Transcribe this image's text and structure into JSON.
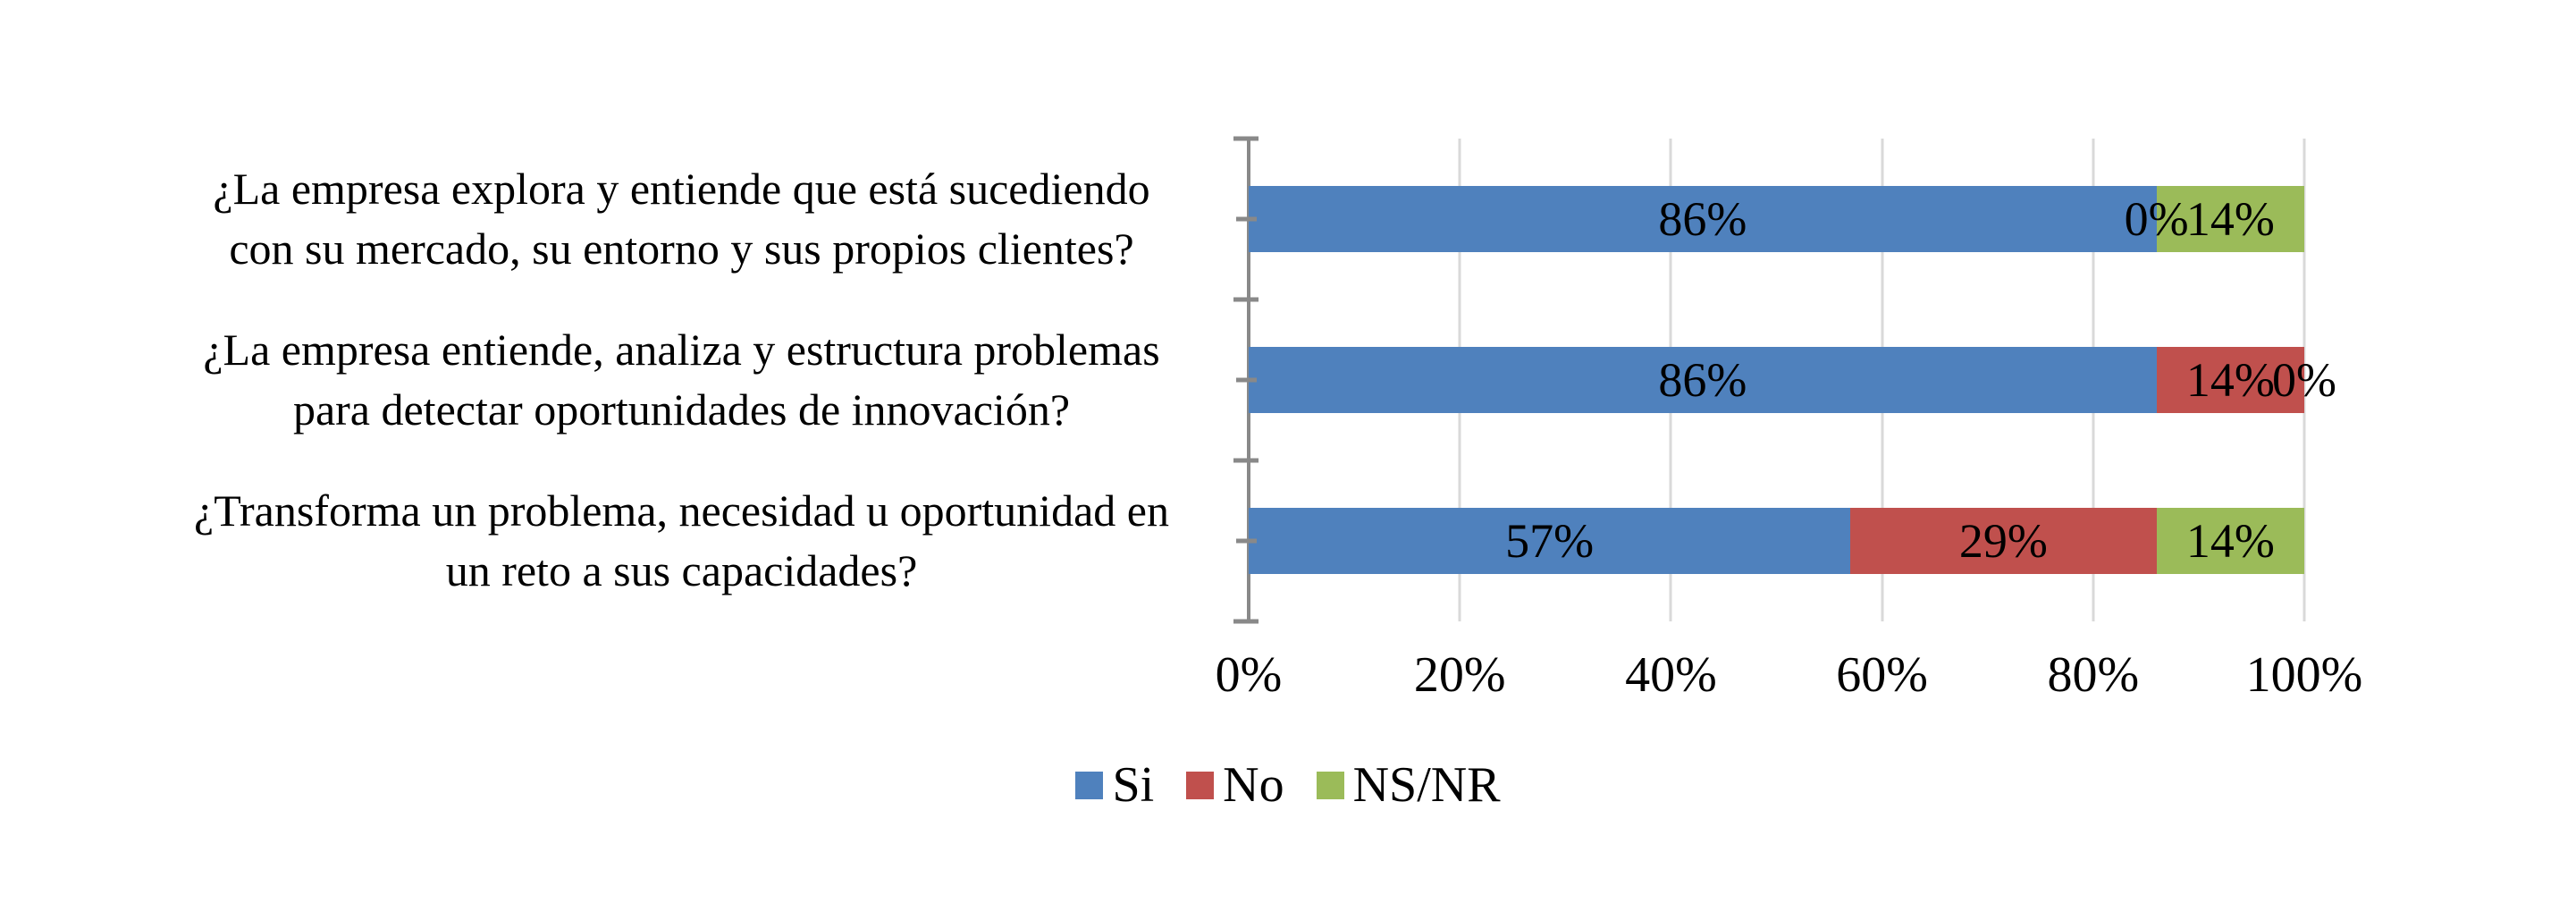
{
  "chart_data": {
    "type": "bar",
    "orientation": "horizontal",
    "stacked": true,
    "unit": "%",
    "title": "",
    "categories": [
      "¿La empresa explora y entiende que está sucediendo\ncon su mercado, su entorno y sus propios clientes?",
      "¿La empresa entiende, analiza y estructura problemas\npara detectar oportunidades de innovación?",
      "¿Transforma un problema, necesidad u oportunidad en\nun reto a sus capacidades?"
    ],
    "series": [
      {
        "name": "Si",
        "color": "#4F81BD",
        "values": [
          86,
          86,
          57
        ]
      },
      {
        "name": "No",
        "color": "#C0504D",
        "values": [
          0,
          14,
          29
        ]
      },
      {
        "name": "NS/NR",
        "color": "#9BBB59",
        "values": [
          14,
          0,
          14
        ]
      }
    ],
    "data_labels": [
      [
        "86%",
        "0%",
        "14%"
      ],
      [
        "86%",
        "14%",
        "0%"
      ],
      [
        "57%",
        "29%",
        "14%"
      ]
    ],
    "x_ticks": [
      "0%",
      "20%",
      "40%",
      "60%",
      "80%",
      "100%"
    ],
    "xlim": [
      0,
      100
    ],
    "grid": "vertical-major",
    "legend_position": "bottom-center",
    "colors": {
      "axis": "#898989",
      "gridline": "#D9D9D9",
      "text": "#000000",
      "background": "#FFFFFF"
    }
  }
}
